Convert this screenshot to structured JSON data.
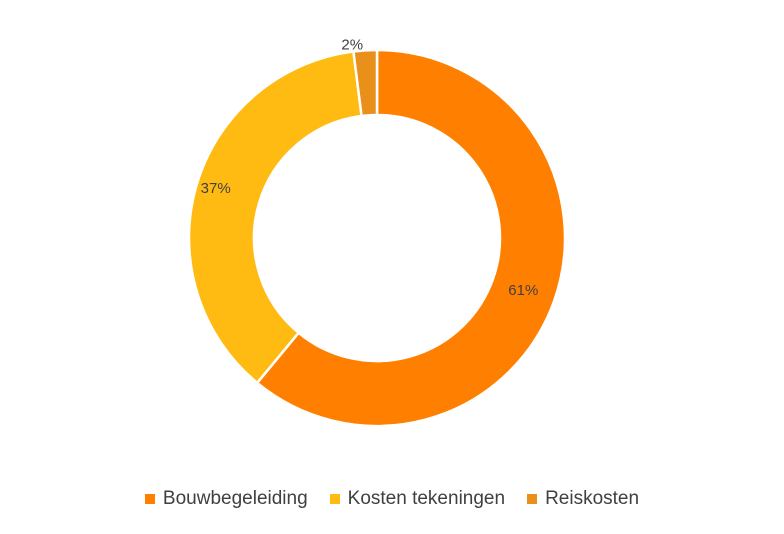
{
  "chart_data": {
    "type": "pie",
    "donut": true,
    "categories": [
      "Bouwbegeleiding",
      "Kosten tekeningen",
      "Reiskosten"
    ],
    "values": [
      61,
      37,
      2
    ],
    "data_labels": [
      "61%",
      "37%",
      "2%"
    ],
    "colors": [
      "#FF8000",
      "#FFBB11",
      "#E8901A"
    ],
    "start_angle_deg": 0,
    "direction": "clockwise",
    "legend": {
      "position": "bottom",
      "entries": [
        "Bouwbegeleiding",
        "Kosten tekeningen",
        "Reiskosten"
      ]
    }
  }
}
